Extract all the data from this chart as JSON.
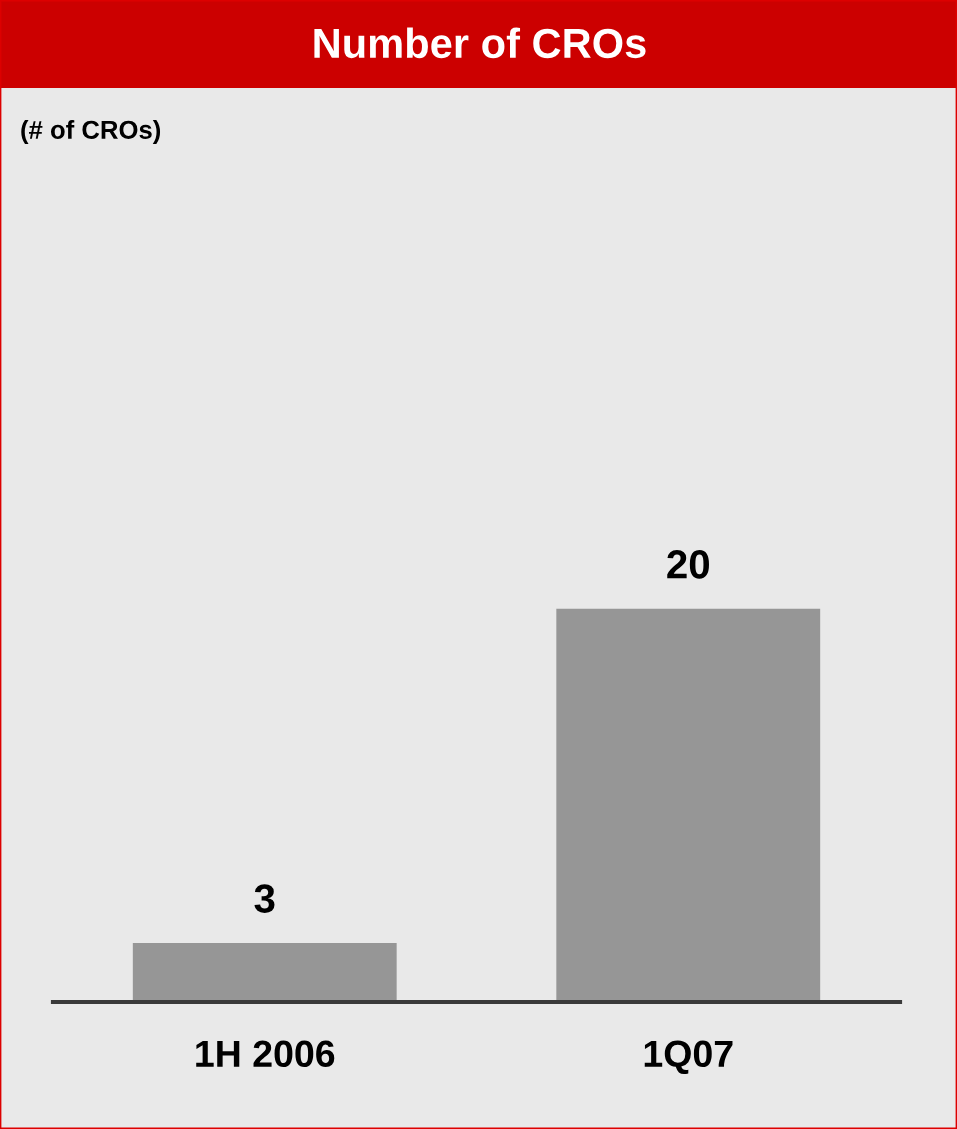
{
  "chart_data": {
    "type": "bar",
    "title": "Number of CROs",
    "annotations": [
      "(# of CROs)"
    ],
    "categories": [
      "1H 2006",
      "1Q07"
    ],
    "values": [
      3,
      20
    ],
    "color": "#969696",
    "data_labels": true
  }
}
